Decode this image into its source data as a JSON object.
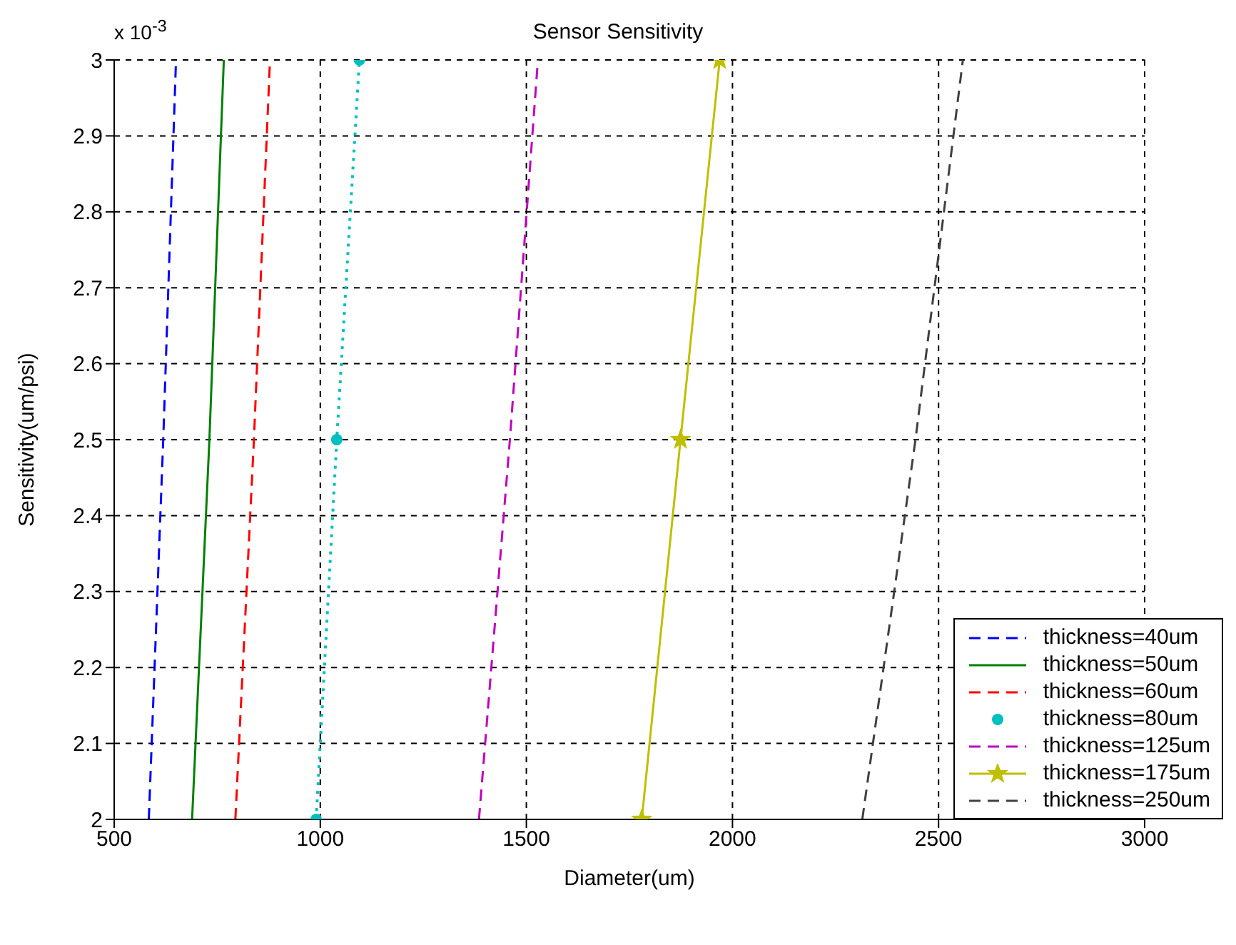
{
  "chart_data": {
    "type": "line",
    "title": "Sensor Sensitivity",
    "xlabel": "Diameter(um)",
    "ylabel": "Sensitivity(um/psi)",
    "annotations": [
      "x 10$^{-3}$"
    ],
    "xlim": [
      500,
      3000
    ],
    "xticks": [
      500,
      1000,
      1500,
      2000,
      2500,
      3000
    ],
    "ylim": [
      2,
      3
    ],
    "yticks": [
      2,
      2.1,
      2.2,
      2.3,
      2.4,
      2.5,
      2.6,
      2.7,
      2.8,
      2.9,
      3
    ],
    "grid": true,
    "legend": "bottom right",
    "series": [
      {
        "name": "thickness=40um",
        "color": "#0000ff",
        "line_style": "dashed",
        "x": [
          584,
          619,
          650
        ],
        "values": [
          2,
          2.5,
          3
        ]
      },
      {
        "name": "thickness=50um",
        "color": "#008000",
        "line_style": "solid",
        "x": [
          689,
          731,
          766
        ],
        "values": [
          2,
          2.5,
          3
        ]
      },
      {
        "name": "thickness=60um",
        "color": "#ff0000",
        "line_style": "dashed",
        "x": [
          794,
          839,
          878
        ],
        "values": [
          2,
          2.5,
          3
        ]
      },
      {
        "name": "thickness=80um",
        "color": "#00bfbf",
        "line_style": "dotted",
        "marker": "circle",
        "x": [
          990,
          1040,
          1095
        ],
        "values": [
          2,
          2.5,
          3
        ]
      },
      {
        "name": "thickness=125um",
        "color": "#bf00bf",
        "line_style": "dashed",
        "x": [
          1385,
          1460,
          1528
        ],
        "values": [
          2,
          2.5,
          3
        ]
      },
      {
        "name": "thickness=175um",
        "color": "#bfbf00",
        "line_style": "solid",
        "marker": "star",
        "x": [
          1780,
          1874,
          1969
        ],
        "values": [
          2,
          2.5,
          3
        ]
      },
      {
        "name": "thickness=250um",
        "color": "#404040",
        "line_style": "dashed",
        "x": [
          2315,
          2444,
          2559
        ],
        "values": [
          2,
          2.5,
          3
        ]
      }
    ]
  }
}
